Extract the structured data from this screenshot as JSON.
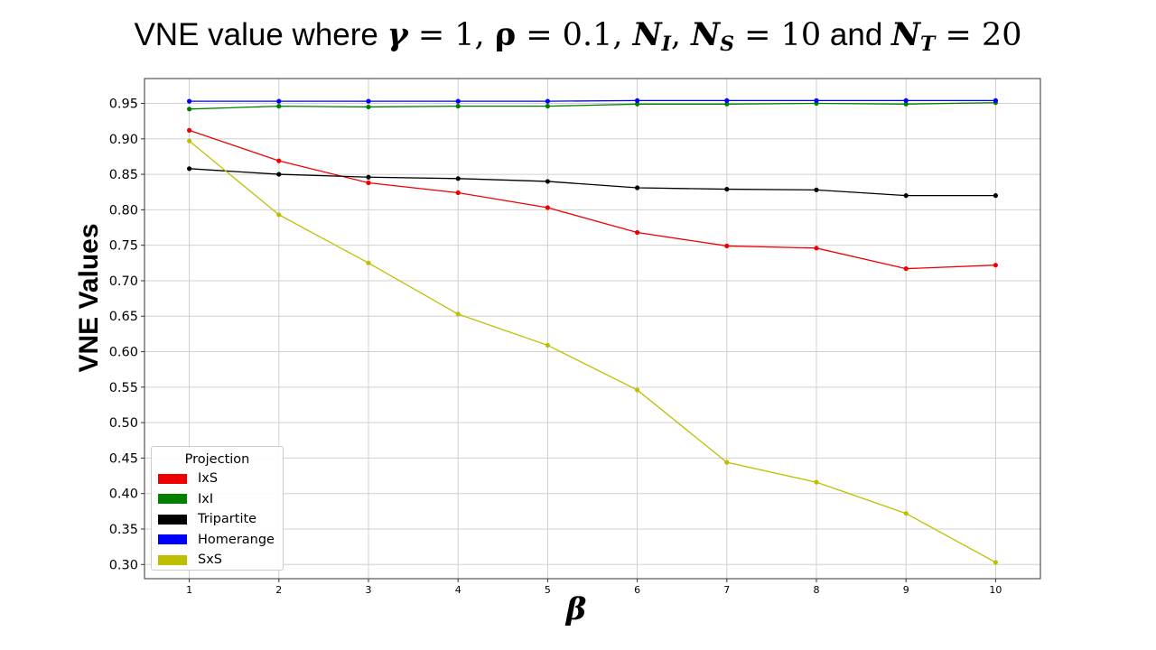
{
  "title": {
    "prefix": "VNE value where ",
    "gamma_sym": "γ",
    "gamma_eq": " = 1, ",
    "rho_sym": "ρ",
    "rho_eq": " = 0.1, ",
    "n_sym": "N",
    "ni_sub": "I",
    "sep": ", ",
    "ns_sub": "S",
    "ns_eq": " = 10",
    "and_word": " and ",
    "nt_sub": "T",
    "nt_eq": " = 20"
  },
  "chart_data": {
    "type": "line",
    "x": [
      1,
      2,
      3,
      4,
      5,
      6,
      7,
      8,
      9,
      10
    ],
    "xlabel": "β",
    "ylabel": "VNE Values",
    "xlim": [
      0.5,
      10.5
    ],
    "ylim": [
      0.28,
      0.985
    ],
    "xticks": [
      "1",
      "2",
      "3",
      "4",
      "5",
      "6",
      "7",
      "8",
      "9",
      "10"
    ],
    "yticks": [
      "0.30",
      "0.35",
      "0.40",
      "0.45",
      "0.50",
      "0.55",
      "0.60",
      "0.65",
      "0.70",
      "0.75",
      "0.80",
      "0.85",
      "0.90",
      "0.95"
    ],
    "grid": true,
    "legend": {
      "title": "Projection",
      "placement": "lower-left"
    },
    "series": [
      {
        "name": "IxS",
        "color": "#ee0000",
        "values": [
          0.912,
          0.869,
          0.838,
          0.824,
          0.803,
          0.768,
          0.749,
          0.746,
          0.717,
          0.722
        ]
      },
      {
        "name": "IxI",
        "color": "#008000",
        "values": [
          0.942,
          0.946,
          0.945,
          0.946,
          0.946,
          0.949,
          0.949,
          0.95,
          0.949,
          0.951
        ]
      },
      {
        "name": "Tripartite",
        "color": "#000000",
        "values": [
          0.858,
          0.85,
          0.846,
          0.844,
          0.84,
          0.831,
          0.829,
          0.828,
          0.82,
          0.82
        ]
      },
      {
        "name": "Homerange",
        "color": "#0000ff",
        "values": [
          0.953,
          0.953,
          0.953,
          0.953,
          0.953,
          0.954,
          0.954,
          0.954,
          0.954,
          0.954
        ]
      },
      {
        "name": "SxS",
        "color": "#bfbf00",
        "values": [
          0.897,
          0.793,
          0.725,
          0.653,
          0.609,
          0.546,
          0.444,
          0.416,
          0.372,
          0.303
        ]
      }
    ]
  }
}
